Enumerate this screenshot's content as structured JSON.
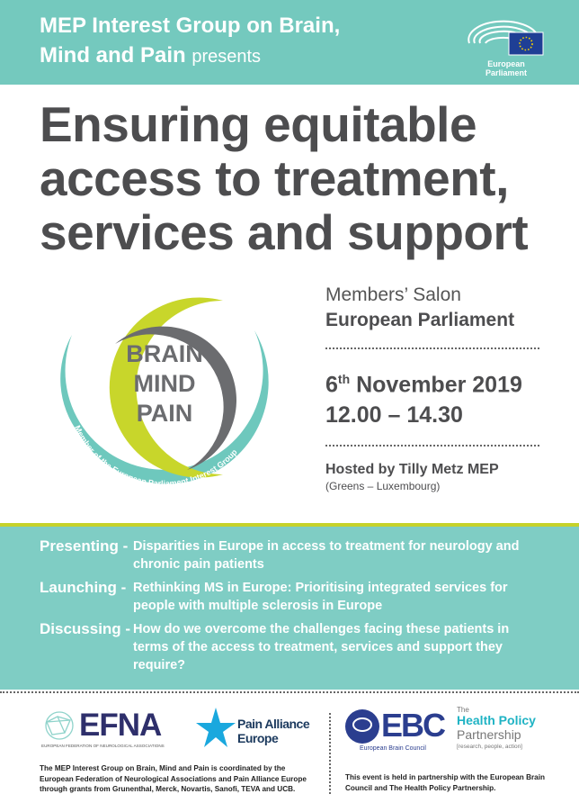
{
  "header": {
    "title_line1": "MEP Interest Group on Brain,",
    "title_line2": "Mind and Pain",
    "presents": "presents",
    "ep_logo_label": "European Parliament"
  },
  "main_title": [
    "Ensuring equitable",
    "access to treatment,",
    "services and support"
  ],
  "logo": {
    "words": [
      "BRAIN",
      "MIND",
      "PAIN"
    ],
    "ring_text": "Member of the European Parliament Interest Group"
  },
  "event": {
    "venue_line1": "Members’ Salon",
    "venue_line2": "European Parliament",
    "date_day": "6",
    "date_suffix": "th",
    "date_rest": " November 2019",
    "time": "12.00 – 14.30",
    "host": "Hosted by Tilly Metz MEP",
    "host_affiliation": "(Greens – Luxembourg)"
  },
  "agenda": [
    {
      "label": "Presenting -",
      "text": "Disparities in Europe in access to treatment for neurology and chronic pain patients"
    },
    {
      "label": "Launching -",
      "text": "Rethinking MS in Europe: Prioritising integrated services for people with multiple sclerosis in Europe"
    },
    {
      "label": "Discussing -",
      "text": "How do we overcome the challenges facing these patients in terms of the access to treatment, services and support they require?"
    }
  ],
  "footer": {
    "efna": "EFNA",
    "efna_full": "EUROPEAN FEDERATION OF NEUROLOGICAL ASSOCIATIONS",
    "pae1": "Pain Alliance",
    "pae2": "Europe",
    "ebc": "EBC",
    "ebc_full": "European Brain Council",
    "hpp_the": "The",
    "hpp1": "Health Policy",
    "hpp2": "Partnership",
    "hpp_tag": "[research, people, action]",
    "left_text": "The MEP Interest Group on Brain, Mind and Pain is coordinated by the European Federation of Neurological Associations and Pain Alliance Europe through grants from Grunenthal, Merck, Novartis, Sanofi, TEVA and UCB.",
    "right_text": "This event is held in partnership with the European Brain Council and The Health Policy Partnership."
  },
  "colors": {
    "header_teal": "#74c9be",
    "agenda_teal": "#7fcdc4",
    "accent_green": "#c6d22a",
    "text_grey": "#4d4d4f",
    "ebc_blue": "#2b3e8f",
    "efna_navy": "#2e2f6b"
  }
}
